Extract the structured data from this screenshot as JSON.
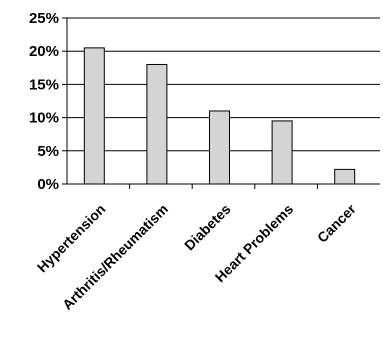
{
  "chart_data": {
    "type": "bar",
    "categories": [
      "Hypertension",
      "Arthritis/Rheumatism",
      "Diabetes",
      "Heart Problems",
      "Cancer"
    ],
    "values": [
      20.5,
      18,
      11,
      9.5,
      2.2
    ],
    "y_ticks": [
      "0%",
      "5%",
      "10%",
      "15%",
      "20%",
      "25%"
    ],
    "ylim": [
      0,
      25
    ],
    "grid": true,
    "legend": "none",
    "title": "",
    "xlabel": "",
    "ylabel": "",
    "colors": {
      "bar_fill": "#d4d4d4",
      "bar_stroke": "#000000",
      "grid": "#000000"
    }
  }
}
